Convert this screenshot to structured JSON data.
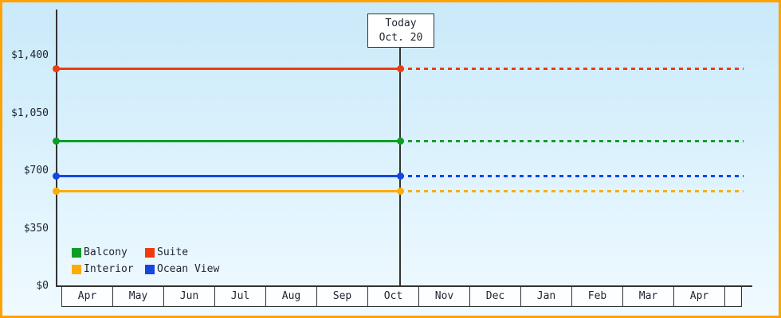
{
  "colors": {
    "frame_border": "#ffa200",
    "axis": "#333333",
    "plot_bg_top": "#cae9fa",
    "plot_bg_bottom": "#f0faff",
    "text": "#1d2430"
  },
  "chart_data": {
    "type": "line",
    "title": "",
    "xlabel": "",
    "ylabel": "",
    "grid": false,
    "legend_position": "bottom-left",
    "ylim": [
      0,
      1400
    ],
    "x_categories": [
      "Apr",
      "May",
      "Jun",
      "Jul",
      "Aug",
      "Sep",
      "Oct",
      "Nov",
      "Dec",
      "Jan",
      "Feb",
      "Mar",
      "Apr"
    ],
    "y_ticks": [
      {
        "label": "$1,400",
        "value": 1400
      },
      {
        "label": "$1,050",
        "value": 1050
      },
      {
        "label": "$700",
        "value": 700
      },
      {
        "label": "$350",
        "value": 350
      },
      {
        "label": "$0",
        "value": 0
      }
    ],
    "today": {
      "label": "Today",
      "date": "Oct. 20",
      "month": "Oct"
    },
    "series": [
      {
        "name": "Suite",
        "color": "#f03a10",
        "value": 1320,
        "style_before_today": "solid",
        "style_after_today": "dashed"
      },
      {
        "name": "Balcony",
        "color": "#0b9e26",
        "value": 880,
        "style_before_today": "solid",
        "style_after_today": "dashed"
      },
      {
        "name": "Ocean View",
        "color": "#1646e0",
        "value": 670,
        "style_before_today": "solid",
        "style_after_today": "dashed"
      },
      {
        "name": "Interior",
        "color": "#ffab00",
        "value": 575,
        "style_before_today": "solid",
        "style_after_today": "dashed"
      }
    ],
    "legend": [
      "Balcony",
      "Suite",
      "Interior",
      "Ocean View"
    ]
  }
}
